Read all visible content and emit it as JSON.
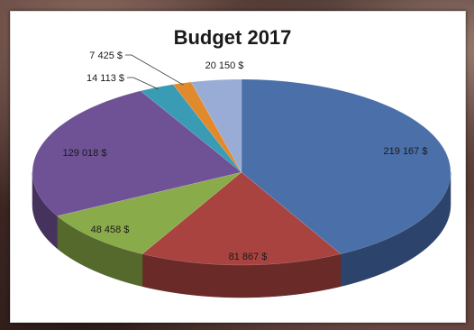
{
  "chart_data": {
    "type": "pie",
    "title": "Budget 2017",
    "slices": [
      {
        "label": "219 167 $",
        "value": 219167,
        "color": "#4a6fa9",
        "side": "#2c446b"
      },
      {
        "label": "81 867 $",
        "value": 81867,
        "color": "#a84340",
        "side": "#6a2a28"
      },
      {
        "label": "48 458 $",
        "value": 48458,
        "color": "#8aab4a",
        "side": "#55692d"
      },
      {
        "label": "129 018 $",
        "value": 129018,
        "color": "#6f5296",
        "side": "#45335d"
      },
      {
        "label": "14 113 $",
        "value": 14113,
        "color": "#3a9bb4",
        "side": "#24606f"
      },
      {
        "label": "7 425 $",
        "value": 7425,
        "color": "#e1892d",
        "side": "#8c551c"
      },
      {
        "label": "20 150 $",
        "value": 20150,
        "color": "#98acd6",
        "side": "#5f6b85"
      }
    ],
    "style": "3d",
    "legend": "none"
  }
}
